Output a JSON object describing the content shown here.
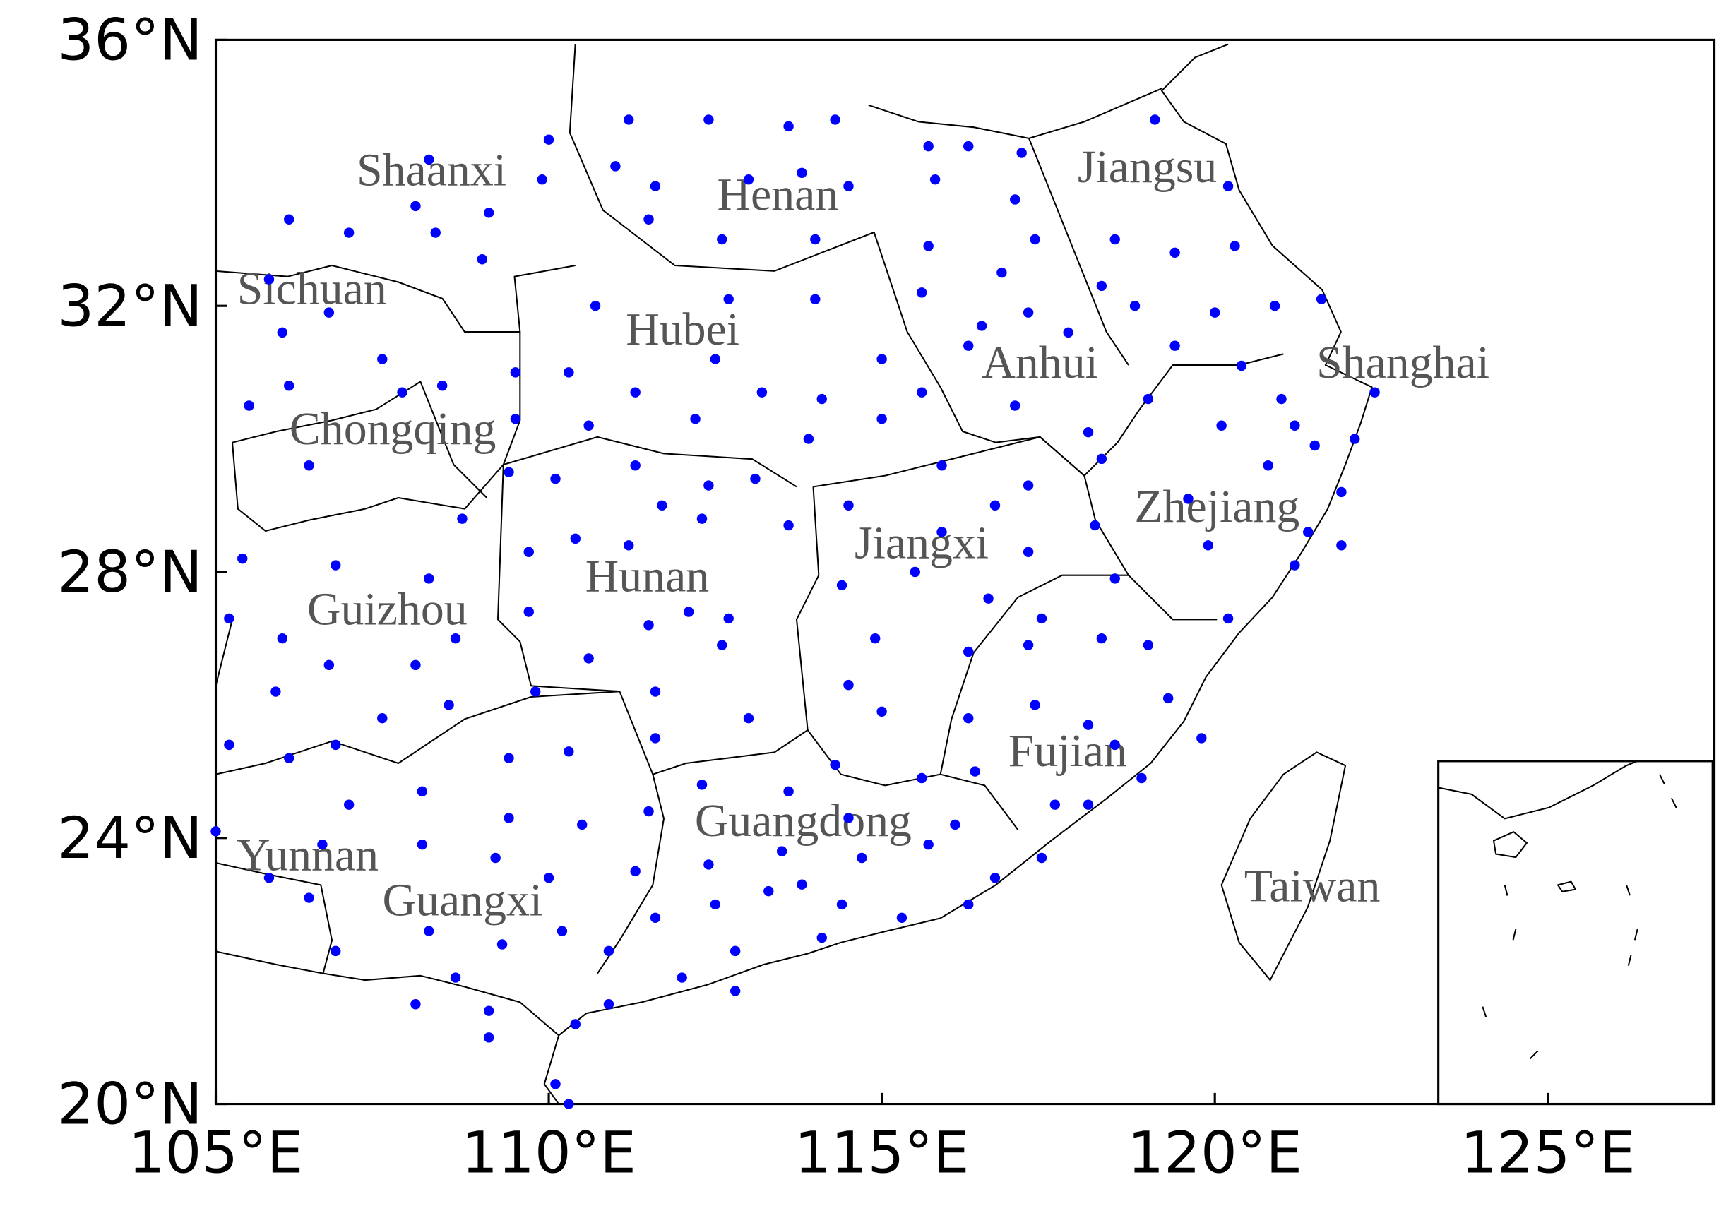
{
  "chart_data": {
    "type": "scatter",
    "color": "#0000ff",
    "xlim": [
      105,
      127.5
    ],
    "ylim": [
      20,
      36
    ],
    "xticks": [
      {
        "value": 105,
        "label": "105°E"
      },
      {
        "value": 110,
        "label": "110°E"
      },
      {
        "value": 115,
        "label": "115°E"
      },
      {
        "value": 120,
        "label": "120°E"
      },
      {
        "value": 125,
        "label": "125°E"
      }
    ],
    "yticks": [
      {
        "value": 20,
        "label": "20°N"
      },
      {
        "value": 24,
        "label": "24°N"
      },
      {
        "value": 28,
        "label": "28°N"
      },
      {
        "value": 32,
        "label": "32°N"
      },
      {
        "value": 36,
        "label": "36°N"
      }
    ],
    "annotations": [
      "Shaanxi",
      "Henan",
      "Jiangsu",
      "Sichuan",
      "Hubei",
      "Anhui",
      "Shanghai",
      "Chongqing",
      "Zhejiang",
      "Jiangxi",
      "Hunan",
      "Guizhou",
      "Fujian",
      "Guangdong",
      "Yunnan",
      "Guangxi",
      "Taiwan"
    ],
    "x": [
      111.2,
      112.4,
      113.6,
      114.3,
      110.0,
      115.7,
      116.3,
      117.1,
      119.1,
      108.2,
      111.0,
      109.9,
      111.6,
      113.0,
      113.8,
      114.5,
      115.8,
      120.2,
      106.1,
      108.0,
      109.1,
      111.5,
      107.0,
      108.3,
      112.6,
      114.0,
      117.0,
      117.3,
      118.5,
      119.4,
      120.3,
      115.7,
      109.0,
      105.8,
      110.7,
      112.7,
      114.0,
      115.6,
      116.8,
      118.3,
      118.8,
      120.0,
      120.9,
      121.6,
      106.7,
      106.0,
      116.5,
      116.3,
      117.2,
      117.8,
      119.4,
      120.4,
      122.4,
      112.5,
      115.0,
      110.3,
      107.5,
      109.5,
      106.1,
      107.8,
      108.4,
      105.5,
      111.3,
      113.2,
      114.1,
      115.6,
      121.0,
      119.0,
      117.0,
      109.5,
      110.6,
      112.2,
      115.0,
      113.9,
      118.1,
      120.1,
      121.2,
      122.1,
      121.5,
      118.3,
      106.4,
      109.4,
      110.1,
      111.3,
      112.4,
      113.1,
      115.9,
      117.2,
      119.6,
      121.9,
      120.8,
      114.5,
      111.7,
      112.3,
      113.6,
      108.7,
      116.7,
      118.2,
      121.4,
      121.9,
      119.9,
      106.8,
      105.4,
      109.7,
      110.4,
      111.2,
      115.9,
      117.2,
      115.5,
      121.2,
      118.5,
      108.2,
      114.4,
      116.6,
      109.7,
      105.2,
      112.1,
      112.7,
      111.5,
      117.4,
      106.0,
      108.6,
      110.6,
      112.6,
      114.9,
      116.3,
      117.2,
      118.3,
      119.0,
      120.2,
      106.7,
      108.0,
      105.9,
      111.6,
      109.8,
      114.5,
      108.5,
      119.3,
      107.5,
      113.0,
      115.0,
      116.3,
      117.3,
      118.1,
      105.2,
      111.6,
      106.8,
      110.3,
      116.4,
      119.8,
      118.5,
      106.1,
      109.4,
      114.3,
      115.6,
      118.9,
      112.3,
      113.6,
      118.1,
      108.1,
      107.0,
      117.6,
      109.4,
      110.5,
      111.5,
      114.5,
      105.0,
      106.6,
      108.1,
      116.1,
      115.7,
      109.2,
      112.4,
      113.5,
      114.7,
      105.8,
      110.0,
      111.3,
      113.8,
      106.4,
      113.3,
      117.4,
      116.7,
      108.2,
      110.2,
      112.5,
      114.4,
      111.6,
      115.3,
      116.3,
      109.3,
      106.8,
      110.9,
      114.1,
      112.8,
      108.6,
      112.0,
      112.8,
      108.0,
      110.9,
      109.1,
      110.4,
      109.1,
      110.1,
      110.3
    ],
    "y": [
      34.8,
      34.8,
      34.7,
      34.8,
      34.5,
      34.4,
      34.4,
      34.3,
      34.8,
      34.2,
      34.1,
      33.9,
      33.8,
      33.9,
      34.0,
      33.8,
      33.9,
      33.8,
      33.3,
      33.5,
      33.4,
      33.3,
      33.1,
      33.1,
      33.0,
      33.0,
      33.6,
      33.0,
      33.0,
      32.8,
      32.9,
      32.9,
      32.7,
      32.4,
      32.0,
      32.1,
      32.1,
      32.2,
      32.5,
      32.3,
      32.0,
      31.9,
      32.0,
      32.1,
      31.9,
      31.6,
      31.7,
      31.4,
      31.9,
      31.6,
      31.4,
      31.1,
      30.7,
      31.2,
      31.2,
      31.0,
      31.2,
      31.0,
      30.8,
      30.7,
      30.8,
      30.5,
      30.7,
      30.7,
      30.6,
      30.7,
      30.6,
      30.6,
      30.5,
      30.3,
      30.2,
      30.3,
      30.3,
      30.0,
      30.1,
      30.2,
      30.2,
      30.0,
      29.9,
      29.7,
      29.6,
      29.5,
      29.4,
      29.6,
      29.3,
      29.4,
      29.6,
      29.3,
      29.1,
      29.2,
      29.6,
      29.0,
      29.0,
      28.8,
      28.7,
      28.8,
      29.0,
      28.7,
      28.6,
      28.4,
      28.4,
      28.1,
      28.2,
      28.3,
      28.5,
      28.4,
      28.6,
      28.3,
      28.0,
      28.1,
      27.9,
      27.9,
      27.8,
      27.6,
      27.4,
      27.3,
      27.4,
      27.3,
      27.2,
      27.3,
      27.0,
      27.0,
      26.7,
      26.9,
      27.0,
      26.8,
      26.9,
      27.0,
      26.9,
      27.3,
      26.6,
      26.6,
      26.2,
      26.2,
      26.2,
      26.3,
      26.0,
      26.1,
      25.8,
      25.8,
      25.9,
      25.8,
      26.0,
      25.7,
      25.4,
      25.5,
      25.4,
      25.3,
      25.0,
      25.5,
      25.4,
      25.2,
      25.2,
      25.1,
      24.9,
      24.9,
      24.8,
      24.7,
      24.5,
      24.7,
      24.5,
      24.5,
      24.3,
      24.2,
      24.4,
      24.3,
      24.1,
      23.9,
      23.9,
      24.2,
      23.9,
      23.7,
      23.6,
      23.8,
      23.7,
      23.4,
      23.4,
      23.5,
      23.3,
      23.1,
      23.2,
      23.7,
      23.4,
      22.6,
      22.6,
      23.0,
      23.0,
      22.8,
      22.8,
      23.0,
      22.4,
      22.3,
      22.3,
      22.5,
      22.3,
      21.9,
      21.9,
      21.7,
      21.5,
      21.5,
      21.4,
      21.2,
      21.0,
      20.3,
      20.0
    ]
  }
}
